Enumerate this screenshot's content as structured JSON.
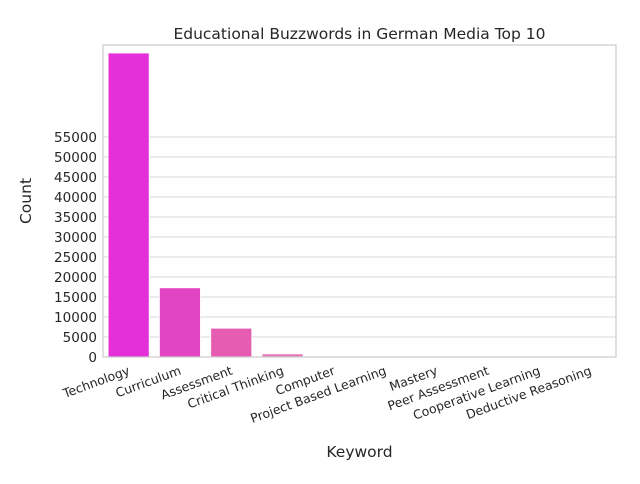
{
  "chart_data": {
    "type": "bar",
    "title": "Educational Buzzwords in German Media Top 10",
    "xlabel": "Keyword",
    "ylabel": "Count",
    "categories": [
      "Technology",
      "Curriculum",
      "Assessment",
      "Critical Thinking",
      "Computer",
      "Project Based Learning",
      "Mastery",
      "Peer Assessment",
      "Cooperative Learning",
      "Deductive Reasoning"
    ],
    "values": [
      76000,
      17300,
      7200,
      800,
      150,
      80,
      50,
      40,
      30,
      20
    ],
    "colors": [
      "#e52fd8",
      "#e344c4",
      "#e55db3",
      "#e77bb8",
      "#e88bc0",
      "#ea97c6",
      "#eca1cb",
      "#eda8cf",
      "#eeafd2",
      "#efb6d5"
    ],
    "yticks": [
      0,
      5000,
      10000,
      15000,
      20000,
      25000,
      30000,
      35000,
      40000,
      45000,
      50000,
      55000
    ],
    "ylim": [
      0,
      78000
    ],
    "grid": "horizontal",
    "legend": "none"
  }
}
